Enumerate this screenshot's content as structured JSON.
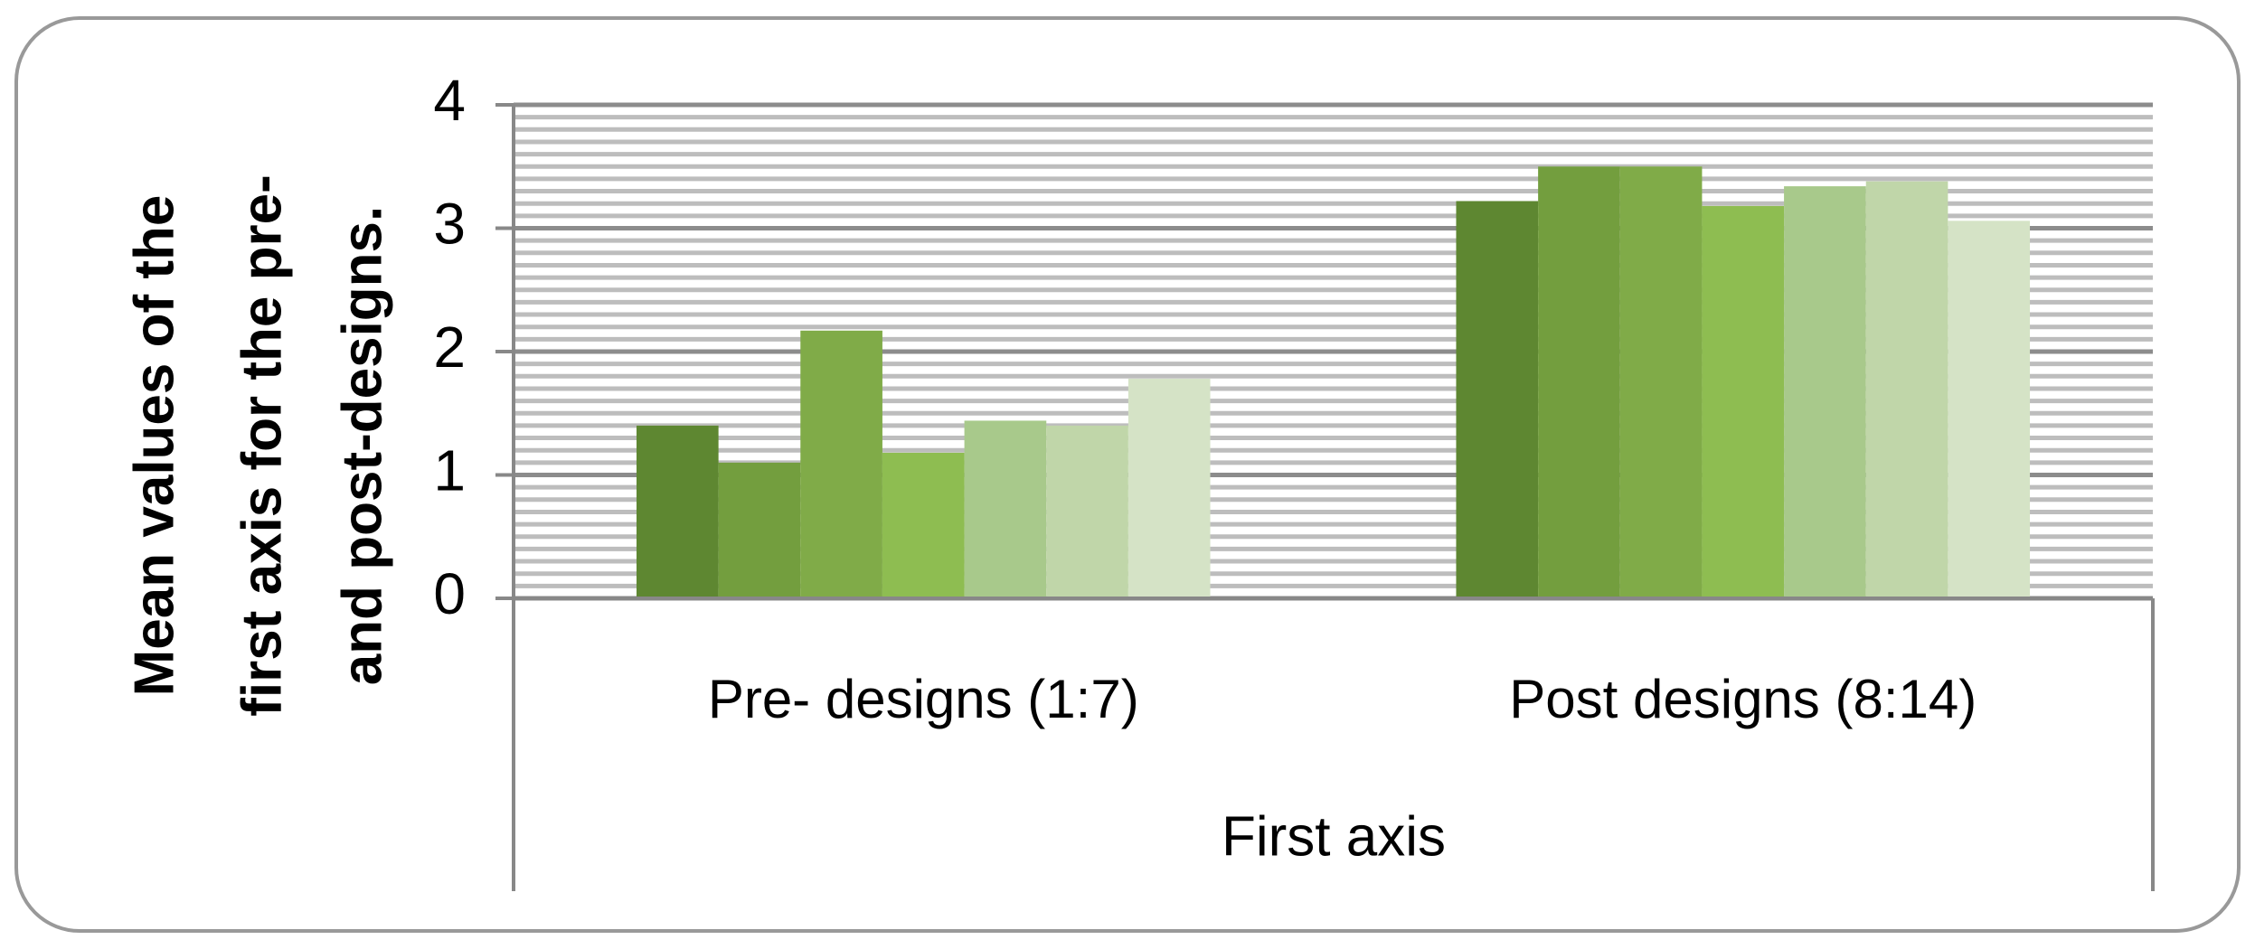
{
  "chart_data": {
    "type": "bar",
    "ylabel": [
      "Mean values of the",
      "first axis for the pre-",
      "and post-designs."
    ],
    "xlabel": "First axis",
    "categories": [
      "Pre- designs (1:7)",
      "Post designs (8:14)"
    ],
    "series": [
      {
        "color": "#5e8731",
        "values": [
          1.4,
          3.22
        ]
      },
      {
        "color": "#739e3e",
        "values": [
          1.1,
          3.5
        ]
      },
      {
        "color": "#80ab48",
        "values": [
          2.17,
          3.5
        ]
      },
      {
        "color": "#8ebd51",
        "values": [
          1.18,
          3.18
        ]
      },
      {
        "color": "#a8c98b",
        "values": [
          1.44,
          3.34
        ]
      },
      {
        "color": "#c0d6a9",
        "values": [
          1.4,
          3.38
        ]
      },
      {
        "color": "#d5e3c6",
        "values": [
          1.78,
          3.06
        ]
      }
    ],
    "ylim": [
      0,
      4
    ],
    "yticks": [
      0,
      1,
      2,
      3,
      4
    ],
    "grid": true,
    "minor_grid_step": 0.1
  }
}
